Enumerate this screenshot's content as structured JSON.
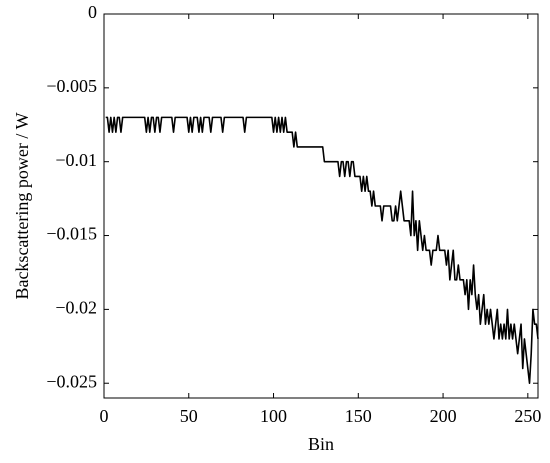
{
  "chart_data": {
    "type": "line",
    "xlabel": "Bin",
    "ylabel": "Backscattering power / W",
    "color": "#000000",
    "xlim": [
      0,
      256
    ],
    "ylim": [
      -0.026,
      0
    ],
    "xticks": [
      0,
      50,
      100,
      150,
      200,
      250
    ],
    "yticks": [
      0,
      {
        "value": -0.005,
        "label": "−0.005"
      },
      {
        "value": -0.01,
        "label": "−0.01"
      },
      {
        "value": -0.015,
        "label": "−0.015"
      },
      {
        "value": -0.02,
        "label": "−0.02"
      },
      {
        "value": -0.025,
        "label": "−0.025"
      }
    ],
    "grid": false,
    "x": [
      1,
      2,
      3,
      4,
      5,
      6,
      7,
      8,
      9,
      10,
      11,
      12,
      13,
      14,
      15,
      16,
      17,
      18,
      19,
      20,
      21,
      22,
      23,
      24,
      25,
      26,
      27,
      28,
      29,
      30,
      31,
      32,
      33,
      34,
      35,
      36,
      37,
      38,
      39,
      40,
      41,
      42,
      43,
      44,
      45,
      46,
      47,
      48,
      49,
      50,
      51,
      52,
      53,
      54,
      55,
      56,
      57,
      58,
      59,
      60,
      61,
      62,
      63,
      64,
      65,
      66,
      67,
      68,
      69,
      70,
      71,
      72,
      73,
      74,
      75,
      76,
      77,
      78,
      79,
      80,
      81,
      82,
      83,
      84,
      85,
      86,
      87,
      88,
      89,
      90,
      91,
      92,
      93,
      94,
      95,
      96,
      97,
      98,
      99,
      100,
      101,
      102,
      103,
      104,
      105,
      106,
      107,
      108,
      109,
      110,
      111,
      112,
      113,
      114,
      115,
      116,
      117,
      118,
      119,
      120,
      121,
      122,
      123,
      124,
      125,
      126,
      127,
      128,
      129,
      130,
      131,
      132,
      133,
      134,
      135,
      136,
      137,
      138,
      139,
      140,
      141,
      142,
      143,
      144,
      145,
      146,
      147,
      148,
      149,
      150,
      151,
      152,
      153,
      154,
      155,
      156,
      157,
      158,
      159,
      160,
      161,
      162,
      163,
      164,
      165,
      166,
      167,
      168,
      169,
      170,
      171,
      172,
      173,
      174,
      175,
      176,
      177,
      178,
      179,
      180,
      181,
      182,
      183,
      184,
      185,
      186,
      187,
      188,
      189,
      190,
      191,
      192,
      193,
      194,
      195,
      196,
      197,
      198,
      199,
      200,
      201,
      202,
      203,
      204,
      205,
      206,
      207,
      208,
      209,
      210,
      211,
      212,
      213,
      214,
      215,
      216,
      217,
      218,
      219,
      220,
      221,
      222,
      223,
      224,
      225,
      226,
      227,
      228,
      229,
      230,
      231,
      232,
      233,
      234,
      235,
      236,
      237,
      238,
      239,
      240,
      241,
      242,
      243,
      244,
      245,
      246,
      247,
      248,
      249,
      250,
      251,
      252,
      253,
      254,
      255,
      256
    ],
    "values": [
      -0.007,
      -0.007,
      -0.008,
      -0.007,
      -0.008,
      -0.007,
      -0.008,
      -0.007,
      -0.007,
      -0.008,
      -0.007,
      -0.007,
      -0.007,
      -0.007,
      -0.007,
      -0.007,
      -0.007,
      -0.007,
      -0.007,
      -0.007,
      -0.007,
      -0.007,
      -0.007,
      -0.007,
      -0.008,
      -0.007,
      -0.008,
      -0.007,
      -0.007,
      -0.008,
      -0.007,
      -0.007,
      -0.008,
      -0.007,
      -0.007,
      -0.007,
      -0.007,
      -0.007,
      -0.007,
      -0.007,
      -0.008,
      -0.007,
      -0.007,
      -0.007,
      -0.007,
      -0.007,
      -0.007,
      -0.007,
      -0.007,
      -0.008,
      -0.007,
      -0.008,
      -0.007,
      -0.007,
      -0.007,
      -0.008,
      -0.007,
      -0.008,
      -0.007,
      -0.007,
      -0.007,
      -0.007,
      -0.008,
      -0.007,
      -0.007,
      -0.007,
      -0.007,
      -0.007,
      -0.007,
      -0.008,
      -0.007,
      -0.007,
      -0.007,
      -0.007,
      -0.007,
      -0.007,
      -0.007,
      -0.007,
      -0.007,
      -0.007,
      -0.007,
      -0.007,
      -0.008,
      -0.007,
      -0.007,
      -0.007,
      -0.007,
      -0.007,
      -0.007,
      -0.007,
      -0.007,
      -0.007,
      -0.007,
      -0.007,
      -0.007,
      -0.007,
      -0.007,
      -0.007,
      -0.007,
      -0.008,
      -0.007,
      -0.008,
      -0.007,
      -0.008,
      -0.007,
      -0.008,
      -0.007,
      -0.008,
      -0.008,
      -0.008,
      -0.008,
      -0.009,
      -0.008,
      -0.009,
      -0.009,
      -0.009,
      -0.009,
      -0.009,
      -0.009,
      -0.009,
      -0.009,
      -0.009,
      -0.009,
      -0.009,
      -0.009,
      -0.009,
      -0.009,
      -0.009,
      -0.009,
      -0.01,
      -0.01,
      -0.01,
      -0.01,
      -0.01,
      -0.01,
      -0.01,
      -0.01,
      -0.01,
      -0.011,
      -0.01,
      -0.01,
      -0.011,
      -0.01,
      -0.01,
      -0.011,
      -0.01,
      -0.01,
      -0.011,
      -0.011,
      -0.011,
      -0.011,
      -0.012,
      -0.011,
      -0.012,
      -0.011,
      -0.012,
      -0.012,
      -0.013,
      -0.012,
      -0.013,
      -0.013,
      -0.013,
      -0.013,
      -0.014,
      -0.013,
      -0.013,
      -0.013,
      -0.013,
      -0.013,
      -0.014,
      -0.014,
      -0.013,
      -0.014,
      -0.013,
      -0.012,
      -0.013,
      -0.014,
      -0.014,
      -0.014,
      -0.014,
      -0.015,
      -0.012,
      -0.015,
      -0.014,
      -0.016,
      -0.014,
      -0.015,
      -0.016,
      -0.015,
      -0.016,
      -0.016,
      -0.016,
      -0.017,
      -0.016,
      -0.016,
      -0.016,
      -0.015,
      -0.016,
      -0.016,
      -0.016,
      -0.016,
      -0.017,
      -0.016,
      -0.018,
      -0.017,
      -0.016,
      -0.018,
      -0.018,
      -0.017,
      -0.018,
      -0.018,
      -0.018,
      -0.019,
      -0.018,
      -0.02,
      -0.018,
      -0.019,
      -0.017,
      -0.019,
      -0.02,
      -0.019,
      -0.021,
      -0.02,
      -0.019,
      -0.021,
      -0.02,
      -0.021,
      -0.02,
      -0.021,
      -0.022,
      -0.021,
      -0.02,
      -0.022,
      -0.021,
      -0.022,
      -0.021,
      -0.022,
      -0.02,
      -0.022,
      -0.021,
      -0.022,
      -0.021,
      -0.022,
      -0.023,
      -0.022,
      -0.021,
      -0.024,
      -0.022,
      -0.023,
      -0.024,
      -0.025,
      -0.023,
      -0.02,
      -0.021,
      -0.021,
      -0.022
    ]
  }
}
